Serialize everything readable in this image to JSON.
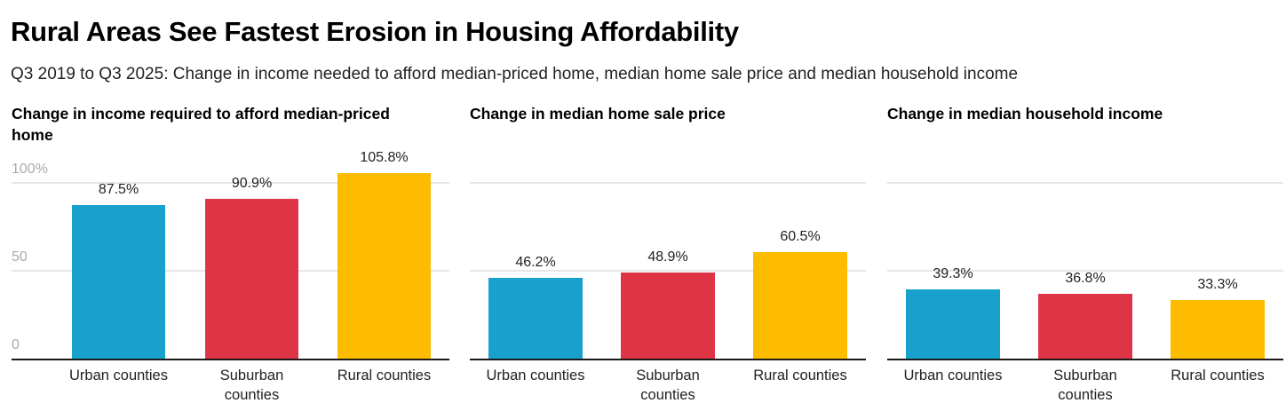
{
  "title": "Rural Areas See Fastest Erosion in Housing Affordability",
  "subtitle": "Q3 2019 to Q3 2025: Change in income needed to afford median-priced home, median home sale price and median household income",
  "chart_data": [
    {
      "type": "bar",
      "title": "Change in income required to afford median-priced home",
      "categories": [
        "Urban counties",
        "Suburban counties",
        "Rural counties"
      ],
      "values": [
        87.5,
        90.9,
        105.8
      ],
      "value_labels": [
        "87.5%",
        "90.9%",
        "105.8%"
      ],
      "colors": [
        "#19a1cd",
        "#df3446",
        "#fdbc00"
      ],
      "ylim": [
        0,
        100
      ],
      "yticks": [
        0,
        50,
        100
      ],
      "ytick_labels": [
        "0",
        "50",
        "100%"
      ],
      "grid": true
    },
    {
      "type": "bar",
      "title": "Change in median home sale price",
      "categories": [
        "Urban counties",
        "Suburban counties",
        "Rural counties"
      ],
      "values": [
        46.2,
        48.9,
        60.5
      ],
      "value_labels": [
        "46.2%",
        "48.9%",
        "60.5%"
      ],
      "colors": [
        "#19a1cd",
        "#df3446",
        "#fdbc00"
      ],
      "ylim": [
        0,
        100
      ],
      "yticks": [
        0,
        50,
        100
      ],
      "grid": true
    },
    {
      "type": "bar",
      "title": "Change in median household income",
      "categories": [
        "Urban counties",
        "Suburban counties",
        "Rural counties"
      ],
      "values": [
        39.3,
        36.8,
        33.3
      ],
      "value_labels": [
        "39.3%",
        "36.8%",
        "33.3%"
      ],
      "colors": [
        "#19a1cd",
        "#df3446",
        "#fdbc00"
      ],
      "ylim": [
        0,
        100
      ],
      "yticks": [
        0,
        50,
        100
      ],
      "grid": true
    }
  ]
}
